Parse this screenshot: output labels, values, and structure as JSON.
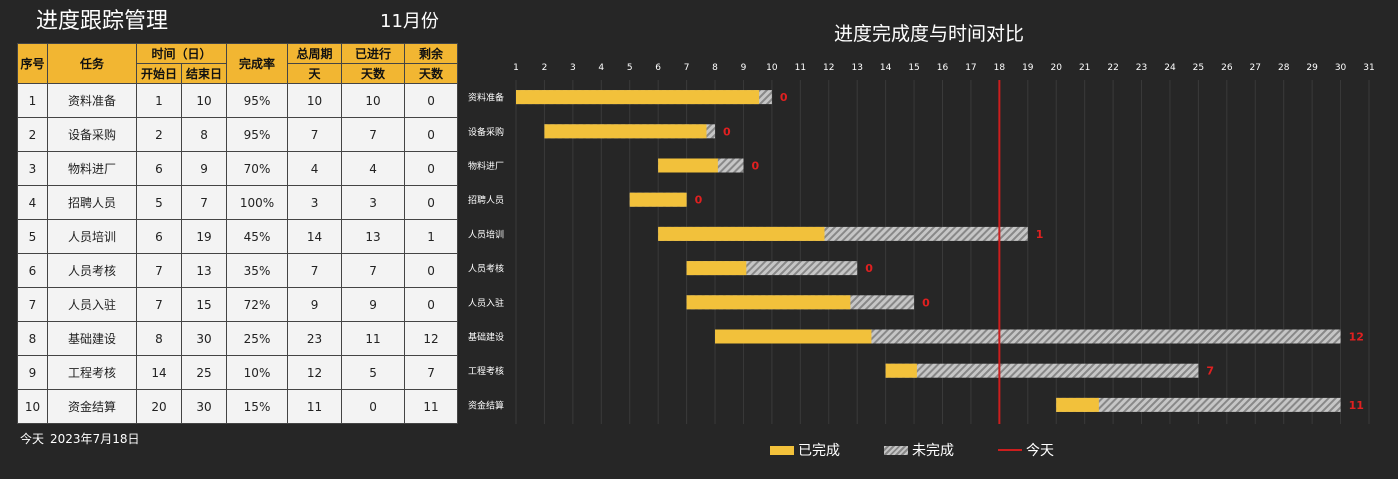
{
  "header": {
    "title": "进度跟踪管理",
    "month": "11月份",
    "today_label": "今天",
    "today_date": "2023年7月18日"
  },
  "table": {
    "headers": {
      "index": "序号",
      "task": "任务",
      "time_group": "时间（日）",
      "start": "开始日",
      "end": "结束日",
      "rate": "完成率",
      "total_a": "总周期",
      "total_b": "天",
      "done_a": "已进行",
      "done_b": "天数",
      "remain_a": "剩余",
      "remain_b": "天数"
    },
    "rows": [
      {
        "index": "1",
        "task": "资料准备",
        "start": "1",
        "end": "10",
        "rate": "95%",
        "total": "10",
        "done": "10",
        "remain": "0"
      },
      {
        "index": "2",
        "task": "设备采购",
        "start": "2",
        "end": "8",
        "rate": "95%",
        "total": "7",
        "done": "7",
        "remain": "0"
      },
      {
        "index": "3",
        "task": "物料进厂",
        "start": "6",
        "end": "9",
        "rate": "70%",
        "total": "4",
        "done": "4",
        "remain": "0"
      },
      {
        "index": "4",
        "task": "招聘人员",
        "start": "5",
        "end": "7",
        "rate": "100%",
        "total": "3",
        "done": "3",
        "remain": "0"
      },
      {
        "index": "5",
        "task": "人员培训",
        "start": "6",
        "end": "19",
        "rate": "45%",
        "total": "14",
        "done": "13",
        "remain": "1"
      },
      {
        "index": "6",
        "task": "人员考核",
        "start": "7",
        "end": "13",
        "rate": "35%",
        "total": "7",
        "done": "7",
        "remain": "0"
      },
      {
        "index": "7",
        "task": "人员入驻",
        "start": "7",
        "end": "15",
        "rate": "72%",
        "total": "9",
        "done": "9",
        "remain": "0"
      },
      {
        "index": "8",
        "task": "基础建设",
        "start": "8",
        "end": "30",
        "rate": "25%",
        "total": "23",
        "done": "11",
        "remain": "12"
      },
      {
        "index": "9",
        "task": "工程考核",
        "start": "14",
        "end": "25",
        "rate": "10%",
        "total": "12",
        "done": "5",
        "remain": "7"
      },
      {
        "index": "10",
        "task": "资金结算",
        "start": "20",
        "end": "30",
        "rate": "15%",
        "total": "11",
        "done": "0",
        "remain": "11"
      }
    ]
  },
  "chart_data": {
    "type": "bar",
    "orientation": "horizontal-stacked-gantt",
    "title": "进度完成度与时间对比",
    "x_ticks": [
      "1",
      "2",
      "3",
      "4",
      "5",
      "6",
      "7",
      "8",
      "9",
      "10",
      "11",
      "12",
      "13",
      "14",
      "15",
      "16",
      "17",
      "18",
      "19",
      "20",
      "21",
      "22",
      "23",
      "24",
      "25",
      "26",
      "27",
      "28",
      "29",
      "30",
      "31"
    ],
    "xlim": [
      1,
      31
    ],
    "today": 18,
    "colors": {
      "done": "#f2c13b",
      "remaining_stripe_light": "#c6c6c6",
      "remaining_stripe_dark": "#888888",
      "today_line": "#cc1e1e",
      "label": "#e02020"
    },
    "tasks": [
      {
        "name": "资料准备",
        "start": 1,
        "end": 10,
        "rate": 0.95,
        "label": "0"
      },
      {
        "name": "设备采购",
        "start": 2,
        "end": 8,
        "rate": 0.95,
        "label": "0"
      },
      {
        "name": "物料进厂",
        "start": 6,
        "end": 9,
        "rate": 0.7,
        "label": "0"
      },
      {
        "name": "招聘人员",
        "start": 5,
        "end": 7,
        "rate": 1.0,
        "label": "0"
      },
      {
        "name": "人员培训",
        "start": 6,
        "end": 19,
        "rate": 0.45,
        "label": "1"
      },
      {
        "name": "人员考核",
        "start": 7,
        "end": 13,
        "rate": 0.35,
        "label": "0"
      },
      {
        "name": "人员入驻",
        "start": 7,
        "end": 15,
        "rate": 0.72,
        "label": "0"
      },
      {
        "name": "基础建设",
        "start": 8,
        "end": 30,
        "rate": 0.25,
        "label": "12"
      },
      {
        "name": "工程考核",
        "start": 14,
        "end": 25,
        "rate": 0.1,
        "label": "7"
      },
      {
        "name": "资金结算",
        "start": 20,
        "end": 30,
        "rate": 0.15,
        "label": "11"
      }
    ],
    "legend": {
      "position": "bottom",
      "done": "已完成",
      "remaining": "未完成",
      "today": "今天"
    },
    "grid": true
  }
}
